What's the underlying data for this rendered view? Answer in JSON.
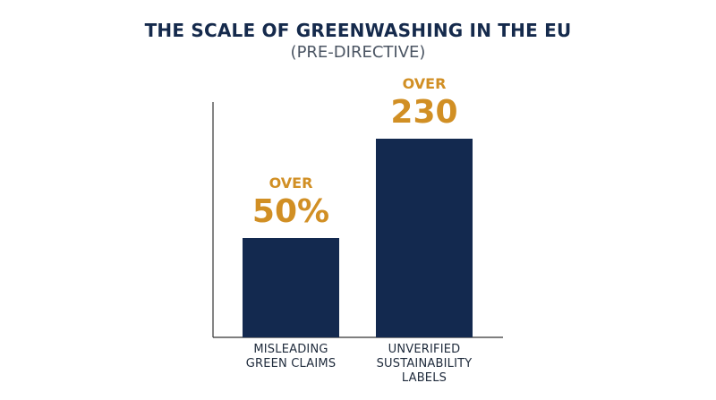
{
  "title": "THE SCALE OF GREENWASHING IN THE EU",
  "subtitle": "(PRE-DIRECTIVE)",
  "colors": {
    "title": "#152a4c",
    "subtitle": "#4b5563",
    "bar": "#13294f",
    "accent": "#d18f24",
    "axis": "#333333",
    "category": "#1e2a3b"
  },
  "chart_data": {
    "type": "bar",
    "title": "THE SCALE OF GREENWASHING IN THE EU",
    "subtitle": "(PRE-DIRECTIVE)",
    "categories": [
      [
        "MISLEADING",
        "GREEN CLAIMS"
      ],
      [
        "UNVERIFIED",
        "SUSTAINABILITY",
        "LABELS"
      ]
    ],
    "bars": [
      {
        "prefix": "OVER",
        "label": "50%",
        "relative_height": 0.5
      },
      {
        "prefix": "OVER",
        "label": "230",
        "relative_height": 1.0
      }
    ],
    "xlabel": "",
    "ylabel": "",
    "grid": false,
    "legend": "none"
  }
}
